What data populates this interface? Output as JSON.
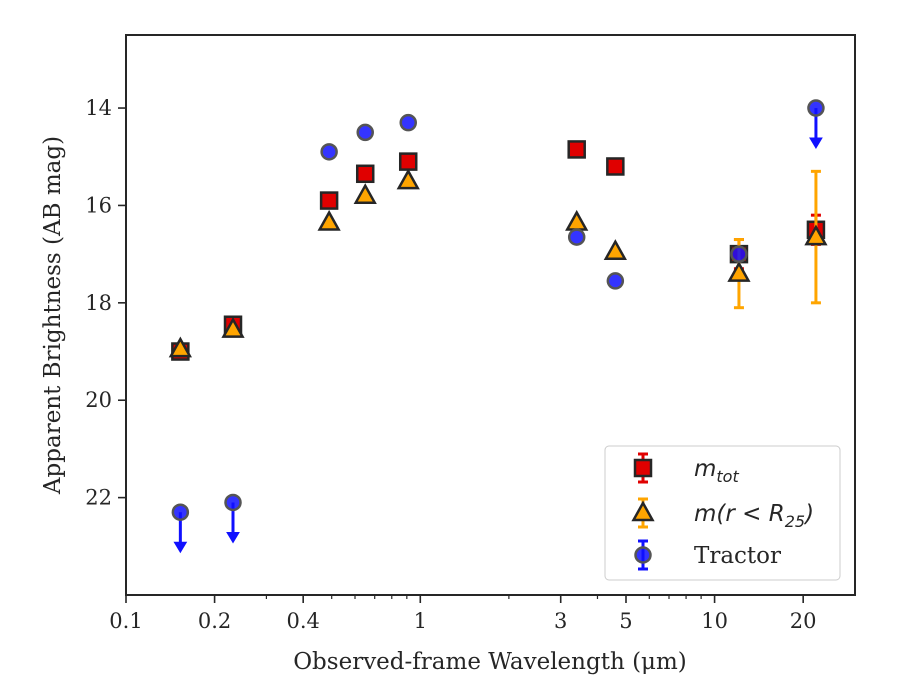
{
  "chart_data": {
    "type": "scatter",
    "title": "",
    "xlabel": "Observed-frame Wavelength (μm)",
    "ylabel": "Apparent Brightness (AB mag)",
    "xscale": "log",
    "xlim": [
      0.1,
      30
    ],
    "ylim": [
      24,
      12.5
    ],
    "y_inverted": true,
    "grid": false,
    "legend_position": "lower-right",
    "x_ticks": [
      {
        "value": 0.1,
        "label": "0.1"
      },
      {
        "value": 0.2,
        "label": "0.2"
      },
      {
        "value": 0.4,
        "label": "0.4"
      },
      {
        "value": 1,
        "label": "1"
      },
      {
        "value": 3,
        "label": "3"
      },
      {
        "value": 5,
        "label": "5"
      },
      {
        "value": 10,
        "label": "10"
      },
      {
        "value": 20,
        "label": "20"
      }
    ],
    "y_ticks": [
      {
        "value": 14,
        "label": "14"
      },
      {
        "value": 16,
        "label": "16"
      },
      {
        "value": 18,
        "label": "18"
      },
      {
        "value": 20,
        "label": "20"
      },
      {
        "value": 22,
        "label": "22"
      }
    ],
    "series": [
      {
        "key": "mtot",
        "legend_main": "m",
        "legend_sub": "tot",
        "marker": "square",
        "color": "#e00000",
        "points": [
          {
            "x": 0.153,
            "y": 19.0
          },
          {
            "x": 0.231,
            "y": 18.45
          },
          {
            "x": 0.49,
            "y": 15.9
          },
          {
            "x": 0.65,
            "y": 15.35
          },
          {
            "x": 0.91,
            "y": 15.1
          },
          {
            "x": 3.4,
            "y": 14.85
          },
          {
            "x": 4.6,
            "y": 15.2
          },
          {
            "x": 12.1,
            "y": 17.0,
            "yerr": 0.3
          },
          {
            "x": 22.1,
            "y": 16.5,
            "yerr": 0.3
          }
        ]
      },
      {
        "key": "mr25",
        "legend_main": "m(r < R",
        "legend_sub": "25",
        "legend_tail": ")",
        "marker": "triangle",
        "color": "#ffa500",
        "points": [
          {
            "x": 0.153,
            "y": 18.95
          },
          {
            "x": 0.231,
            "y": 18.55
          },
          {
            "x": 0.49,
            "y": 16.35
          },
          {
            "x": 0.65,
            "y": 15.8
          },
          {
            "x": 0.91,
            "y": 15.5
          },
          {
            "x": 3.4,
            "y": 16.35
          },
          {
            "x": 4.6,
            "y": 16.95
          },
          {
            "x": 12.1,
            "y": 17.4,
            "yerr": 0.7
          },
          {
            "x": 22.1,
            "y": 16.65,
            "yerr": 1.35
          }
        ]
      },
      {
        "key": "tractor",
        "legend_main": "Tractor",
        "marker": "circle",
        "color": "#1010ff",
        "points": [
          {
            "x": 0.153,
            "y": 22.3,
            "upper_limit": true
          },
          {
            "x": 0.231,
            "y": 22.1,
            "upper_limit": true
          },
          {
            "x": 0.49,
            "y": 14.9
          },
          {
            "x": 0.65,
            "y": 14.5
          },
          {
            "x": 0.91,
            "y": 14.3
          },
          {
            "x": 3.4,
            "y": 16.65
          },
          {
            "x": 4.6,
            "y": 17.55
          },
          {
            "x": 12.1,
            "y": 17.0
          },
          {
            "x": 22.1,
            "y": 14.0,
            "upper_limit": true
          }
        ]
      }
    ]
  }
}
